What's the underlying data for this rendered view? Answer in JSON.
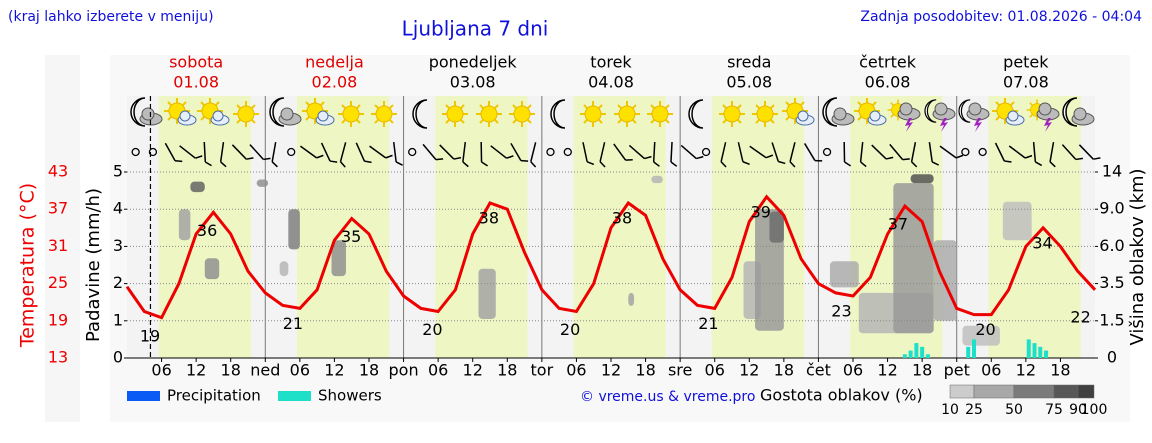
{
  "chart_data": {
    "type": "line",
    "title": "Ljubljana 7 dni",
    "note": "(kraj lahko izberete v meniju)",
    "updated": "Zadnja posodobitev: 01.08.2026 - 04:04",
    "credit": "© vreme.us & vreme.pro",
    "days": [
      {
        "name": "sobota",
        "date": "01.08",
        "color": "#e00000"
      },
      {
        "name": "nedelja",
        "date": "02.08",
        "color": "#e00000"
      },
      {
        "name": "ponedeljek",
        "date": "03.08",
        "color": "#000000"
      },
      {
        "name": "torek",
        "date": "04.08",
        "color": "#000000"
      },
      {
        "name": "sreda",
        "date": "05.08",
        "color": "#000000"
      },
      {
        "name": "četrtek",
        "date": "06.08",
        "color": "#000000"
      },
      {
        "name": "petek",
        "date": "07.08",
        "color": "#000000"
      }
    ],
    "xlim": [
      0,
      168
    ],
    "xticks": [
      {
        "value": 6,
        "label": "06"
      },
      12,
      18,
      {
        "value": 24,
        "label": "ned"
      },
      {
        "value": 30,
        "label": "06"
      },
      {
        "value": 36,
        "label": "12"
      },
      {
        "value": 42,
        "label": "18"
      },
      {
        "value": 48,
        "label": "pon"
      },
      {
        "value": 54,
        "label": "06"
      },
      {
        "value": 60,
        "label": "12"
      },
      {
        "value": 66,
        "label": "18"
      },
      {
        "value": 72,
        "label": "tor"
      },
      {
        "value": 78,
        "label": "06"
      },
      {
        "value": 84,
        "label": "12"
      },
      {
        "value": 90,
        "label": "18"
      },
      {
        "value": 96,
        "label": "sre"
      },
      {
        "value": 102,
        "label": "06"
      },
      {
        "value": 108,
        "label": "12"
      },
      {
        "value": 114,
        "label": "18"
      },
      {
        "value": 120,
        "label": "čet"
      },
      {
        "value": 126,
        "label": "06"
      },
      {
        "value": 132,
        "label": "12"
      },
      {
        "value": 138,
        "label": "18"
      },
      {
        "value": 144,
        "label": "pet"
      },
      {
        "value": 150,
        "label": "06"
      },
      {
        "value": 156,
        "label": "12"
      },
      {
        "value": 162,
        "label": "18"
      }
    ],
    "daylight": [
      5.5,
      21.5
    ],
    "now": 4.07,
    "ylabel": "Padavine (mm/h)",
    "ylim": [
      0,
      5
    ],
    "yticks": [
      0,
      1,
      2,
      3,
      4,
      5
    ],
    "grid": true,
    "y2label": "Višina oblakov (km)",
    "y2lim": [
      0,
      14
    ],
    "y2ticks": [
      0,
      1.5,
      3.5,
      {
        "value": 6,
        "label": "6.0"
      },
      {
        "value": 9,
        "label": "9.0"
      },
      14
    ],
    "temperature": {
      "label": "Temperatura (°C)",
      "color": "#ee0000",
      "lim": [
        13,
        43
      ],
      "ticks": [
        13,
        19,
        25,
        31,
        37,
        43
      ],
      "x": [
        0,
        3,
        6,
        9,
        12,
        15,
        18,
        21,
        24,
        27,
        30,
        33,
        36,
        39,
        42,
        45,
        48,
        51,
        54,
        57,
        60,
        63,
        66,
        69,
        72,
        75,
        78,
        81,
        84,
        87,
        90,
        93,
        96,
        99,
        102,
        105,
        108,
        111,
        114,
        117,
        120,
        123,
        126,
        129,
        132,
        135,
        138,
        141,
        144,
        147,
        150,
        153,
        156,
        159,
        162,
        165,
        168
      ],
      "values": [
        24.5,
        20.5,
        19.5,
        25,
        33,
        36.5,
        33,
        27,
        23.5,
        21.5,
        21,
        24,
        32,
        35.5,
        33,
        27,
        23,
        21,
        20.5,
        24,
        33,
        38,
        37,
        30,
        24,
        21,
        20.5,
        25,
        34,
        38,
        36,
        29,
        24,
        21.5,
        21,
        26,
        35,
        39,
        36,
        29,
        25,
        23.5,
        23,
        26,
        33,
        37.5,
        35,
        27,
        21,
        20,
        20,
        24,
        31,
        34,
        31,
        27,
        24
      ],
      "labels": [
        {
          "x": 4,
          "value": 19
        },
        {
          "x": 13.9,
          "value": 36
        },
        {
          "x": 28.8,
          "value": 21
        },
        {
          "x": 38.9,
          "value": 35
        },
        {
          "x": 53,
          "value": 20
        },
        {
          "x": 62.8,
          "value": 38
        },
        {
          "x": 76.9,
          "value": 20
        },
        {
          "x": 85.9,
          "value": 38
        },
        {
          "x": 100.9,
          "value": 21
        },
        {
          "x": 110,
          "value": 39
        },
        {
          "x": 124,
          "value": 23
        },
        {
          "x": 133.8,
          "value": 37
        },
        {
          "x": 149,
          "value": 20
        },
        {
          "x": 158.9,
          "value": 34
        },
        {
          "x": 165.5,
          "value": 22
        }
      ]
    },
    "series": [
      {
        "name": "Precipitation",
        "color": "#0a5af5",
        "x": [],
        "values": []
      },
      {
        "name": "Showers",
        "color": "#1ee0c8",
        "x": [
          135,
          136,
          137,
          138,
          139,
          146,
          147,
          156.5,
          157.5,
          158.5,
          159.5
        ],
        "values": [
          0.1,
          0.2,
          0.4,
          0.3,
          0.1,
          0.3,
          0.5,
          0.5,
          0.4,
          0.3,
          0.2
        ]
      }
    ],
    "clouds": {
      "label": "Gostota oblakov (%)",
      "scale": [
        10,
        25,
        50,
        75,
        90,
        100
      ],
      "cells": [
        [
          9,
          11,
          6.5,
          9,
          40
        ],
        [
          11,
          13.5,
          11.3,
          12.7,
          75
        ],
        [
          13.5,
          16,
          3.8,
          5.2,
          50
        ],
        [
          22.5,
          24.5,
          12,
          13,
          50
        ],
        [
          26.5,
          28,
          4,
          5,
          30
        ],
        [
          28,
          30,
          5.8,
          9,
          60
        ],
        [
          35.5,
          38,
          4,
          6.5,
          50
        ],
        [
          61,
          64,
          1.6,
          4.5,
          40
        ],
        [
          87,
          88,
          2.3,
          3,
          40
        ],
        [
          91,
          93,
          12.5,
          13.5,
          30
        ],
        [
          107,
          110,
          1.6,
          5,
          30
        ],
        [
          109,
          114,
          1.1,
          9,
          45
        ],
        [
          111.5,
          114,
          6.3,
          8.8,
          70
        ],
        [
          122,
          127,
          3.3,
          5,
          35
        ],
        [
          127,
          140,
          1,
          3,
          30
        ],
        [
          133,
          140,
          1,
          12.5,
          45
        ],
        [
          136,
          140,
          12.5,
          13.7,
          85
        ],
        [
          140,
          144,
          1.5,
          6.5,
          35
        ],
        [
          145,
          151.5,
          0.5,
          1.3,
          25
        ],
        [
          152,
          157,
          6.5,
          10,
          25
        ]
      ]
    }
  }
}
